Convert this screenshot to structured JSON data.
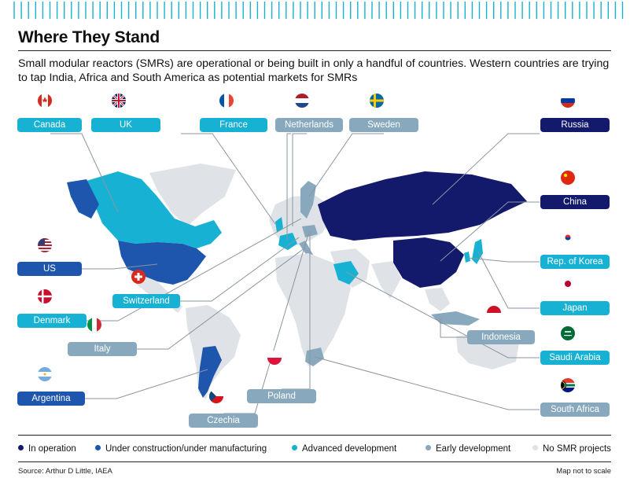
{
  "title": "Where They Stand",
  "subtitle": "Small modular reactors (SMRs) are operational or being built in only a handful of countries. Western countries are trying to tap India, Africa and South America as potential markets for SMRs",
  "colors": {
    "in_operation": "#141a6b",
    "under_construction": "#1e55ad",
    "advanced": "#17b2d3",
    "early": "#88a9bd",
    "none": "#dfe3e7"
  },
  "countries": [
    {
      "key": "canada",
      "label": "Canada",
      "status": "advanced"
    },
    {
      "key": "uk",
      "label": "UK",
      "status": "advanced"
    },
    {
      "key": "france",
      "label": "France",
      "status": "advanced"
    },
    {
      "key": "netherlands",
      "label": "Netherlands",
      "status": "early"
    },
    {
      "key": "sweden",
      "label": "Sweden",
      "status": "early"
    },
    {
      "key": "russia",
      "label": "Russia",
      "status": "in_operation"
    },
    {
      "key": "china",
      "label": "China",
      "status": "in_operation"
    },
    {
      "key": "us",
      "label": "US",
      "status": "under_construction"
    },
    {
      "key": "switzerland",
      "label": "Switzerland",
      "status": "advanced"
    },
    {
      "key": "korea",
      "label": "Rep. of Korea",
      "status": "advanced"
    },
    {
      "key": "denmark",
      "label": "Denmark",
      "status": "advanced"
    },
    {
      "key": "japan",
      "label": "Japan",
      "status": "advanced"
    },
    {
      "key": "italy",
      "label": "Italy",
      "status": "early"
    },
    {
      "key": "indonesia",
      "label": "Indonesia",
      "status": "early"
    },
    {
      "key": "saudi",
      "label": "Saudi Arabia",
      "status": "advanced"
    },
    {
      "key": "argentina",
      "label": "Argentina",
      "status": "under_construction"
    },
    {
      "key": "poland",
      "label": "Poland",
      "status": "early"
    },
    {
      "key": "south_africa",
      "label": "South Africa",
      "status": "early"
    },
    {
      "key": "czechia",
      "label": "Czechia",
      "status": "early"
    }
  ],
  "legend": [
    {
      "label": "In operation",
      "status": "in_operation"
    },
    {
      "label": "Under construction/under manufacturing",
      "status": "under_construction"
    },
    {
      "label": "Advanced development",
      "status": "advanced"
    },
    {
      "label": "Early development",
      "status": "early"
    },
    {
      "label": "No SMR projects",
      "status": "none"
    }
  ],
  "source": "Source: Arthur D Little, IAEA",
  "note": "Map not to scale"
}
